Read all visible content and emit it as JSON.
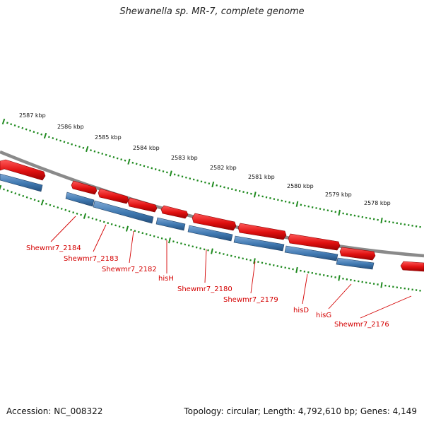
{
  "title": "Shewanella sp. MR-7, complete genome",
  "footer": {
    "accession": "Accession: NC_008322",
    "summary": "Topology: circular; Length: 4,792,610 bp; Genes: 4,149"
  },
  "colors": {
    "forward_gene": "#e01010",
    "reverse_gene": "#3f78b0",
    "backbone": "#888888",
    "ticks": "#1f8a1f",
    "gene_label": "#d40000"
  },
  "scale_ticks": [
    {
      "label": "2587 kbp"
    },
    {
      "label": "2586 kbp"
    },
    {
      "label": "2585 kbp"
    },
    {
      "label": "2584 kbp"
    },
    {
      "label": "2583 kbp"
    },
    {
      "label": "2582 kbp"
    },
    {
      "label": "2581 kbp"
    },
    {
      "label": "2580 kbp"
    },
    {
      "label": "2579 kbp"
    },
    {
      "label": "2578 kbp"
    }
  ],
  "gene_labels": [
    {
      "label": "Shewmr7_2184"
    },
    {
      "label": "Shewmr7_2183"
    },
    {
      "label": "Shewmr7_2182"
    },
    {
      "label": "hisH"
    },
    {
      "label": "Shewmr7_2180"
    },
    {
      "label": "Shewmr7_2179"
    },
    {
      "label": "hisD"
    },
    {
      "label": "hisG"
    },
    {
      "label": "Shewmr7_2176"
    }
  ]
}
